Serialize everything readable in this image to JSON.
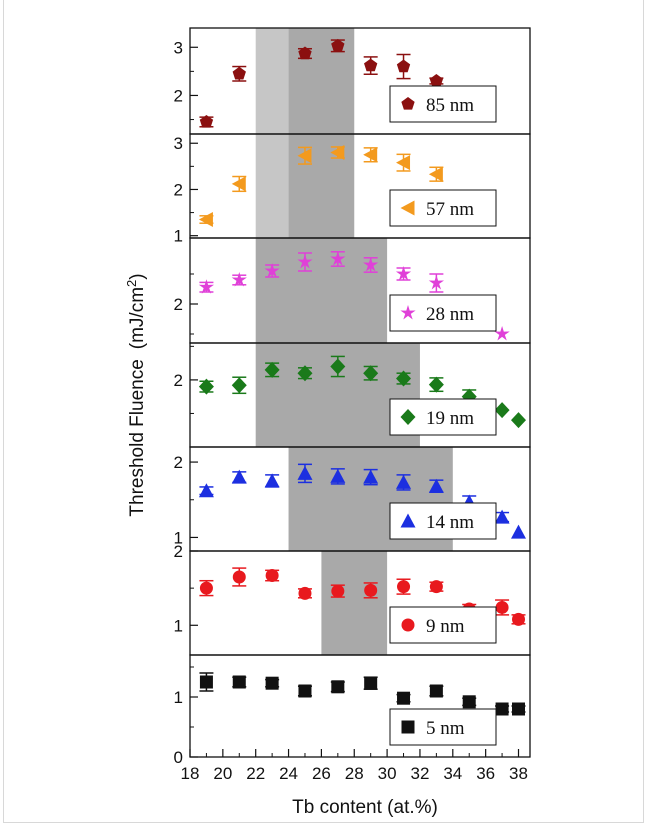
{
  "chart_data": {
    "type": "scatter",
    "title": "",
    "xlabel": "Tb content (at.%)",
    "ylabel": "Threshold Fluence",
    "ylabel_unit": "(mJ/cm",
    "ylabel_superscript": "2",
    "ylabel_close": ")",
    "xlim": [
      18,
      38.7
    ],
    "xticks": [
      "18",
      "20",
      "22",
      "24",
      "26",
      "28",
      "30",
      "32",
      "34",
      "36",
      "38"
    ],
    "grid": false,
    "legend_position": "bottom-right of each panel",
    "panels": [
      {
        "name": "85 nm",
        "marker": "pentagon",
        "color": "#8b1010",
        "ylim": [
          1.2,
          3.4
        ],
        "yticks": [
          "2",
          "3"
        ],
        "shaded": [
          {
            "x": [
              22,
              24
            ],
            "shade": "light"
          },
          {
            "x": [
              24,
              28
            ],
            "shade": "dark"
          }
        ],
        "x": [
          19,
          21,
          25,
          27,
          29,
          31,
          33
        ],
        "y": [
          1.45,
          2.45,
          2.87,
          3.03,
          2.62,
          2.6,
          2.3
        ],
        "err": [
          0.1,
          0.15,
          0.1,
          0.12,
          0.18,
          0.25,
          0.06
        ]
      },
      {
        "name": "57 nm",
        "marker": "triangle-left",
        "color": "#f39a1e",
        "ylim": [
          0.95,
          3.2
        ],
        "yticks": [
          "1",
          "2",
          "3"
        ],
        "shaded": [
          {
            "x": [
              22,
              24
            ],
            "shade": "light"
          },
          {
            "x": [
              24,
              28
            ],
            "shade": "dark"
          }
        ],
        "x": [
          19,
          21,
          25,
          27,
          29,
          31,
          33
        ],
        "y": [
          1.35,
          2.12,
          2.73,
          2.8,
          2.75,
          2.58,
          2.33
        ],
        "err": [
          0.08,
          0.16,
          0.18,
          0.12,
          0.15,
          0.18,
          0.15
        ]
      },
      {
        "name": "28 nm",
        "marker": "star",
        "color": "#e040d8",
        "ylim": [
          1.35,
          3.1
        ],
        "yticks": [
          "2"
        ],
        "shaded": [
          {
            "x": [
              22,
              30
            ],
            "shade": "dark"
          }
        ],
        "x": [
          19,
          21,
          23,
          25,
          27,
          29,
          31,
          33,
          35,
          37
        ],
        "y": [
          2.28,
          2.4,
          2.55,
          2.7,
          2.75,
          2.65,
          2.5,
          2.35,
          1.95,
          1.5
        ],
        "err": [
          0.08,
          0.08,
          0.1,
          0.15,
          0.12,
          0.12,
          0.1,
          0.15,
          0.0,
          0.0
        ]
      },
      {
        "name": "19 nm",
        "marker": "diamond",
        "color": "#1a7a1a",
        "ylim": [
          1.0,
          2.55
        ],
        "yticks": [
          "2"
        ],
        "shaded": [
          {
            "x": [
              22,
              32
            ],
            "shade": "dark"
          }
        ],
        "x": [
          19,
          21,
          23,
          25,
          27,
          29,
          31,
          33,
          35,
          37,
          38
        ],
        "y": [
          1.9,
          1.92,
          2.15,
          2.1,
          2.2,
          2.1,
          2.02,
          1.93,
          1.75,
          1.55,
          1.4
        ],
        "err": [
          0.08,
          0.12,
          0.1,
          0.08,
          0.15,
          0.1,
          0.08,
          0.1,
          0.1,
          0.0,
          0.0
        ]
      },
      {
        "name": "14 nm",
        "marker": "triangle-up",
        "color": "#1c2fe0",
        "ylim": [
          0.82,
          2.2
        ],
        "yticks": [
          "1",
          "2"
        ],
        "shaded": [
          {
            "x": [
              24,
              34
            ],
            "shade": "dark"
          }
        ],
        "x": [
          19,
          21,
          23,
          25,
          27,
          29,
          31,
          33,
          35,
          37,
          38
        ],
        "y": [
          1.62,
          1.8,
          1.75,
          1.85,
          1.81,
          1.8,
          1.73,
          1.68,
          1.47,
          1.27,
          1.07
        ],
        "err": [
          0.05,
          0.07,
          0.08,
          0.12,
          0.1,
          0.1,
          0.1,
          0.08,
          0.08,
          0.06,
          0.0
        ]
      },
      {
        "name": "9 nm",
        "marker": "circle",
        "color": "#e8191e",
        "ylim": [
          0.6,
          2.0
        ],
        "yticks": [
          "1",
          "2"
        ],
        "shaded": [
          {
            "x": [
              26,
              30
            ],
            "shade": "dark"
          }
        ],
        "x": [
          19,
          21,
          23,
          25,
          27,
          29,
          31,
          33,
          35,
          37,
          38
        ],
        "y": [
          1.5,
          1.65,
          1.67,
          1.43,
          1.46,
          1.47,
          1.52,
          1.52,
          1.22,
          1.24,
          1.08
        ],
        "err": [
          0.1,
          0.12,
          0.07,
          0.06,
          0.08,
          0.1,
          0.1,
          0.06,
          0.06,
          0.1,
          0.06
        ]
      },
      {
        "name": "5 nm",
        "marker": "square",
        "color": "#111111",
        "ylim": [
          0.0,
          1.7
        ],
        "yticks": [
          "0",
          "1"
        ],
        "shaded": [],
        "x": [
          19,
          21,
          23,
          25,
          27,
          29,
          31,
          33,
          35,
          37,
          38
        ],
        "y": [
          1.25,
          1.25,
          1.23,
          1.1,
          1.17,
          1.23,
          0.98,
          1.1,
          0.92,
          0.8,
          0.8
        ],
        "err": [
          0.15,
          0.08,
          0.06,
          0.08,
          0.08,
          0.1,
          0.06,
          0.08,
          0.06,
          0.05,
          0.05
        ]
      }
    ]
  }
}
